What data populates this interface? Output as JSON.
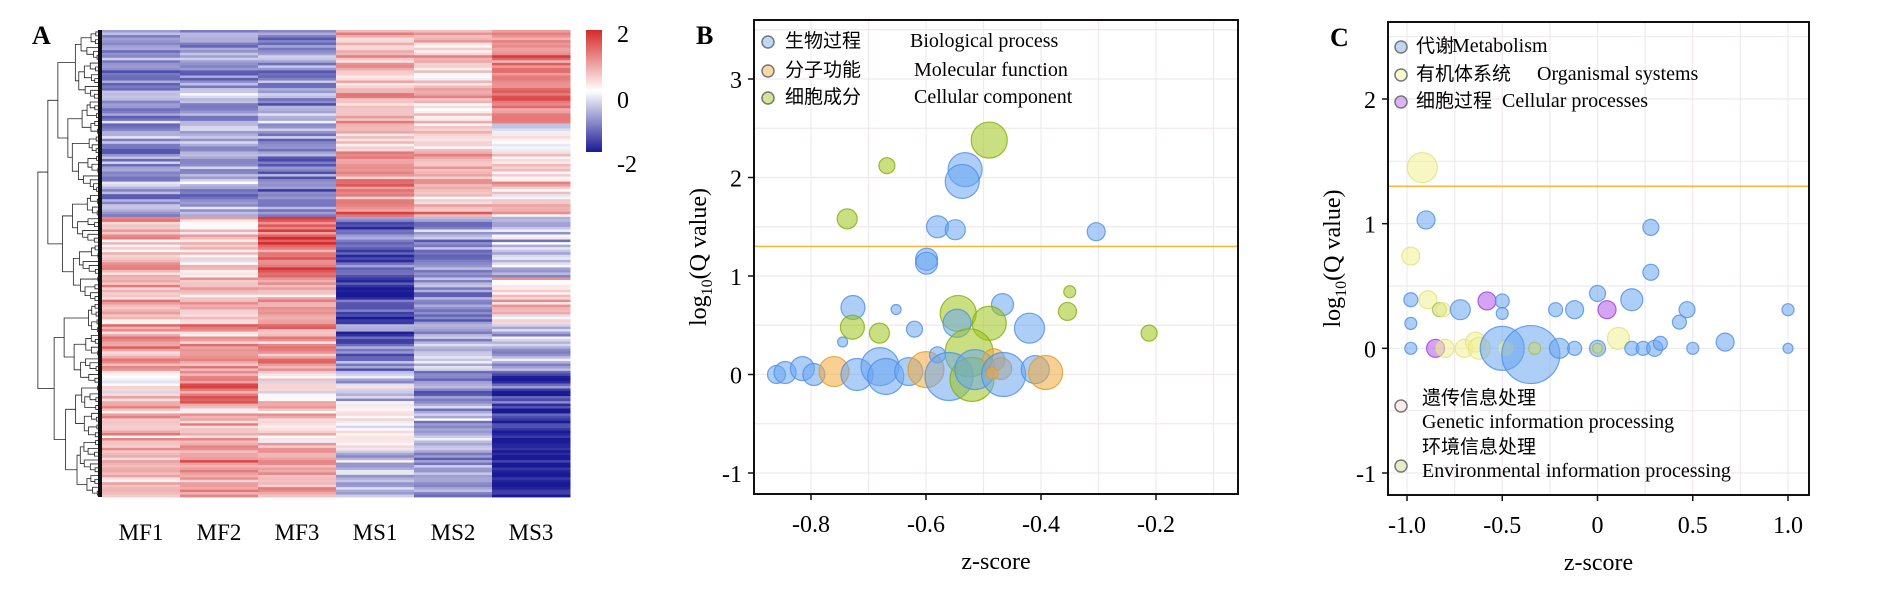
{
  "chart_data": [
    {
      "panel_label": "A",
      "type": "heatmap",
      "title": "",
      "columns": [
        "MF1",
        "MF2",
        "MF3",
        "MS1",
        "MS2",
        "MS3"
      ],
      "colorbar": {
        "min": -2,
        "max": 2,
        "ticks": [
          "2",
          "0",
          "-2"
        ],
        "low_color": "#1a1a96",
        "mid_color": "#ffffff",
        "high_color": "#d62a2a"
      },
      "row_clusters_note": "hierarchical dendrogram on rows",
      "row_blocks": [
        {
          "fraction": 0.2,
          "values": [
            -0.9,
            -0.8,
            -0.8,
            0.7,
            0.6,
            1.3
          ]
        },
        {
          "fraction": 0.06,
          "values": [
            -0.8,
            -0.6,
            -0.9,
            0.5,
            0.5,
            -0.2
          ]
        },
        {
          "fraction": 0.14,
          "values": [
            -0.8,
            -0.7,
            -1.0,
            1.2,
            0.8,
            0.5
          ]
        },
        {
          "fraction": 0.13,
          "values": [
            0.7,
            0.4,
            1.4,
            -1.2,
            -0.9,
            -0.5
          ]
        },
        {
          "fraction": 0.1,
          "values": [
            0.6,
            0.6,
            0.7,
            -1.6,
            -1.0,
            0.4
          ]
        },
        {
          "fraction": 0.1,
          "values": [
            0.8,
            0.9,
            0.8,
            -1.2,
            -0.7,
            -0.7
          ]
        },
        {
          "fraction": 0.07,
          "values": [
            0.3,
            1.3,
            0.3,
            -0.5,
            -0.9,
            -1.6
          ]
        },
        {
          "fraction": 0.1,
          "values": [
            0.6,
            0.8,
            0.5,
            0.1,
            -0.6,
            -1.9
          ]
        },
        {
          "fraction": 0.1,
          "values": [
            0.7,
            1.0,
            0.9,
            -0.6,
            -0.7,
            -1.9
          ]
        }
      ]
    },
    {
      "panel_label": "B",
      "type": "scatter",
      "subtype": "bubble",
      "xlabel": "z-score",
      "ylabel": "log10(Q value)",
      "ylabel_main": "log",
      "ylabel_sub": "10",
      "ylabel_rest": "(Q value)",
      "xlim": [
        -0.88,
        -0.18
      ],
      "ylim": [
        -1.2,
        3.6
      ],
      "xticks": [
        -0.8,
        -0.6,
        -0.4,
        -0.2
      ],
      "xtick_labels": [
        "-0.8",
        "-0.6",
        "-0.4",
        "-0.2"
      ],
      "yticks": [
        -1,
        0,
        1,
        2,
        3
      ],
      "ytick_labels": [
        "-1",
        "0",
        "1",
        "2",
        "3"
      ],
      "threshold_y": 1.3,
      "threshold_color": "#f5b942",
      "grid": true,
      "legend_position": "top-left",
      "legend": [
        {
          "zh": "生物过程",
          "en": "Biological process",
          "color": "#6aa6f0"
        },
        {
          "zh": "分子功能",
          "en": "Molecular function",
          "color": "#f3a93a"
        },
        {
          "zh": "细胞成分",
          "en": "Cellular component",
          "color": "#9dc41a"
        }
      ],
      "points": [
        {
          "s": 0,
          "x": -0.532,
          "y": 2.08,
          "r": 17
        },
        {
          "s": 0,
          "x": -0.537,
          "y": 1.96,
          "r": 17
        },
        {
          "s": 2,
          "x": -0.49,
          "y": 2.38,
          "r": 18
        },
        {
          "s": 2,
          "x": -0.668,
          "y": 2.12,
          "r": 8
        },
        {
          "s": 2,
          "x": -0.737,
          "y": 1.58,
          "r": 10
        },
        {
          "s": 0,
          "x": -0.58,
          "y": 1.5,
          "r": 11
        },
        {
          "s": 0,
          "x": -0.549,
          "y": 1.47,
          "r": 10
        },
        {
          "s": 0,
          "x": -0.304,
          "y": 1.45,
          "r": 9
        },
        {
          "s": 0,
          "x": -0.599,
          "y": 1.17,
          "r": 11
        },
        {
          "s": 0,
          "x": -0.599,
          "y": 1.13,
          "r": 11
        },
        {
          "s": 2,
          "x": -0.35,
          "y": 0.84,
          "r": 6
        },
        {
          "s": 2,
          "x": -0.354,
          "y": 0.64,
          "r": 9
        },
        {
          "s": 2,
          "x": -0.212,
          "y": 0.42,
          "r": 8
        },
        {
          "s": 0,
          "x": -0.727,
          "y": 0.68,
          "r": 12
        },
        {
          "s": 0,
          "x": -0.652,
          "y": 0.66,
          "r": 5
        },
        {
          "s": 2,
          "x": -0.544,
          "y": 0.62,
          "r": 18
        },
        {
          "s": 0,
          "x": -0.467,
          "y": 0.71,
          "r": 11
        },
        {
          "s": 2,
          "x": -0.728,
          "y": 0.48,
          "r": 12
        },
        {
          "s": 2,
          "x": -0.681,
          "y": 0.42,
          "r": 10
        },
        {
          "s": 0,
          "x": -0.62,
          "y": 0.46,
          "r": 8
        },
        {
          "s": 0,
          "x": -0.546,
          "y": 0.52,
          "r": 14
        },
        {
          "s": 2,
          "x": -0.49,
          "y": 0.52,
          "r": 17
        },
        {
          "s": 0,
          "x": -0.42,
          "y": 0.47,
          "r": 15
        },
        {
          "s": 0,
          "x": -0.745,
          "y": 0.33,
          "r": 5
        },
        {
          "s": 2,
          "x": -0.525,
          "y": 0.22,
          "r": 24
        },
        {
          "s": 0,
          "x": -0.86,
          "y": 0.0,
          "r": 9
        },
        {
          "s": 0,
          "x": -0.845,
          "y": 0.02,
          "r": 11
        },
        {
          "s": 0,
          "x": -0.815,
          "y": 0.06,
          "r": 12
        },
        {
          "s": 0,
          "x": -0.795,
          "y": 0.0,
          "r": 11
        },
        {
          "s": 1,
          "x": -0.76,
          "y": 0.03,
          "r": 15
        },
        {
          "s": 0,
          "x": -0.72,
          "y": 0.0,
          "r": 16
        },
        {
          "s": 0,
          "x": -0.68,
          "y": 0.08,
          "r": 19
        },
        {
          "s": 0,
          "x": -0.67,
          "y": -0.02,
          "r": 18
        },
        {
          "s": 0,
          "x": -0.63,
          "y": 0.03,
          "r": 14
        },
        {
          "s": 1,
          "x": -0.6,
          "y": 0.05,
          "r": 18
        },
        {
          "s": 0,
          "x": -0.58,
          "y": 0.2,
          "r": 8
        },
        {
          "s": 0,
          "x": -0.56,
          "y": -0.02,
          "r": 24
        },
        {
          "s": 2,
          "x": -0.52,
          "y": -0.05,
          "r": 22
        },
        {
          "s": 0,
          "x": -0.515,
          "y": 0.05,
          "r": 20
        },
        {
          "s": 1,
          "x": -0.482,
          "y": 0.15,
          "r": 11
        },
        {
          "s": 1,
          "x": -0.47,
          "y": 0.06,
          "r": 11
        },
        {
          "s": 0,
          "x": -0.465,
          "y": 0.0,
          "r": 22
        },
        {
          "s": 1,
          "x": -0.485,
          "y": 0.01,
          "r": 6
        },
        {
          "s": 0,
          "x": -0.41,
          "y": 0.05,
          "r": 14
        },
        {
          "s": 1,
          "x": -0.392,
          "y": 0.02,
          "r": 17
        }
      ]
    },
    {
      "panel_label": "C",
      "type": "scatter",
      "subtype": "bubble",
      "xlabel": "z-score",
      "ylabel": "log10(Q value)",
      "ylabel_main": "log",
      "ylabel_sub": "10",
      "ylabel_rest": "(Q value)",
      "xlim": [
        -1.1,
        1.1
      ],
      "ylim": [
        -1.2,
        2.6
      ],
      "xticks": [
        -1.0,
        -0.5,
        0,
        0.5,
        1.0
      ],
      "xtick_labels": [
        "-1.0",
        "-0.5",
        "0",
        "0.5",
        "1.0"
      ],
      "yticks": [
        -1,
        0,
        1,
        2
      ],
      "ytick_labels": [
        "-1",
        "0",
        "1",
        "2"
      ],
      "threshold_y": 1.3,
      "threshold_color": "#f5b942",
      "grid": true,
      "legend_position": "top-left and bottom-left",
      "legend": [
        {
          "zh": "代谢",
          "en": "Metabolism",
          "color": "#6aa6f0"
        },
        {
          "zh": "有机体系统",
          "en": "Organismal systems",
          "color": "#f1f193"
        },
        {
          "zh": "细胞过程",
          "en": "Cellular processes",
          "color": "#b05ae8"
        },
        {
          "zh": "遗传信息处理",
          "en": "Genetic information processing",
          "color": "#f6d8d8"
        },
        {
          "zh": "环境信息处理",
          "en": "Environmental information processing",
          "color": "#c8d87a"
        }
      ],
      "points": [
        {
          "s": 1,
          "x": -0.92,
          "y": 1.45,
          "r": 15
        },
        {
          "s": 0,
          "x": -0.9,
          "y": 1.03,
          "r": 9
        },
        {
          "s": 1,
          "x": -0.98,
          "y": 0.74,
          "r": 9
        },
        {
          "s": 0,
          "x": 0.28,
          "y": 0.97,
          "r": 8
        },
        {
          "s": 0,
          "x": 0.28,
          "y": 0.61,
          "r": 8
        },
        {
          "s": 0,
          "x": -0.98,
          "y": 0.39,
          "r": 7
        },
        {
          "s": 1,
          "x": -0.89,
          "y": 0.39,
          "r": 9
        },
        {
          "s": 4,
          "x": -0.83,
          "y": 0.31,
          "r": 7
        },
        {
          "s": 1,
          "x": -0.81,
          "y": 0.31,
          "r": 7
        },
        {
          "s": 0,
          "x": -0.72,
          "y": 0.31,
          "r": 10
        },
        {
          "s": 2,
          "x": -0.58,
          "y": 0.38,
          "r": 9
        },
        {
          "s": 0,
          "x": -0.5,
          "y": 0.38,
          "r": 7
        },
        {
          "s": 0,
          "x": -0.5,
          "y": 0.28,
          "r": 6
        },
        {
          "s": 0,
          "x": -0.98,
          "y": 0.2,
          "r": 6
        },
        {
          "s": 0,
          "x": -0.22,
          "y": 0.31,
          "r": 7
        },
        {
          "s": 0,
          "x": -0.12,
          "y": 0.31,
          "r": 9
        },
        {
          "s": 0,
          "x": 0.0,
          "y": 0.44,
          "r": 8
        },
        {
          "s": 2,
          "x": 0.05,
          "y": 0.31,
          "r": 9
        },
        {
          "s": 0,
          "x": 0.18,
          "y": 0.39,
          "r": 11
        },
        {
          "s": 0,
          "x": 0.47,
          "y": 0.31,
          "r": 8
        },
        {
          "s": 0,
          "x": 0.43,
          "y": 0.21,
          "r": 7
        },
        {
          "s": 0,
          "x": 1.0,
          "y": 0.31,
          "r": 6
        },
        {
          "s": 0,
          "x": -0.98,
          "y": 0.0,
          "r": 6
        },
        {
          "s": 2,
          "x": -0.85,
          "y": 0.0,
          "r": 9
        },
        {
          "s": 1,
          "x": -0.8,
          "y": 0.0,
          "r": 9
        },
        {
          "s": 1,
          "x": -0.7,
          "y": 0.0,
          "r": 9
        },
        {
          "s": 1,
          "x": -0.64,
          "y": 0.05,
          "r": 10
        },
        {
          "s": 1,
          "x": -0.62,
          "y": 0.0,
          "r": 11
        },
        {
          "s": 0,
          "x": -0.5,
          "y": 0.0,
          "r": 22
        },
        {
          "s": 1,
          "x": -0.48,
          "y": 0.0,
          "r": 7
        },
        {
          "s": 0,
          "x": -0.35,
          "y": -0.05,
          "r": 29
        },
        {
          "s": 4,
          "x": -0.33,
          "y": 0.0,
          "r": 6
        },
        {
          "s": 0,
          "x": -0.2,
          "y": 0.0,
          "r": 10
        },
        {
          "s": 0,
          "x": -0.12,
          "y": 0.0,
          "r": 7
        },
        {
          "s": 0,
          "x": 0.0,
          "y": 0.0,
          "r": 8
        },
        {
          "s": 4,
          "x": 0.0,
          "y": 0.0,
          "r": 5
        },
        {
          "s": 1,
          "x": 0.11,
          "y": 0.08,
          "r": 11
        },
        {
          "s": 0,
          "x": 0.18,
          "y": 0.0,
          "r": 7
        },
        {
          "s": 0,
          "x": 0.24,
          "y": 0.0,
          "r": 7
        },
        {
          "s": 0,
          "x": 0.3,
          "y": 0.0,
          "r": 8
        },
        {
          "s": 0,
          "x": 0.33,
          "y": 0.04,
          "r": 7
        },
        {
          "s": 0,
          "x": 0.5,
          "y": 0.0,
          "r": 6
        },
        {
          "s": 0,
          "x": 0.67,
          "y": 0.05,
          "r": 9
        },
        {
          "s": 0,
          "x": 1.0,
          "y": 0.0,
          "r": 5
        }
      ]
    }
  ]
}
